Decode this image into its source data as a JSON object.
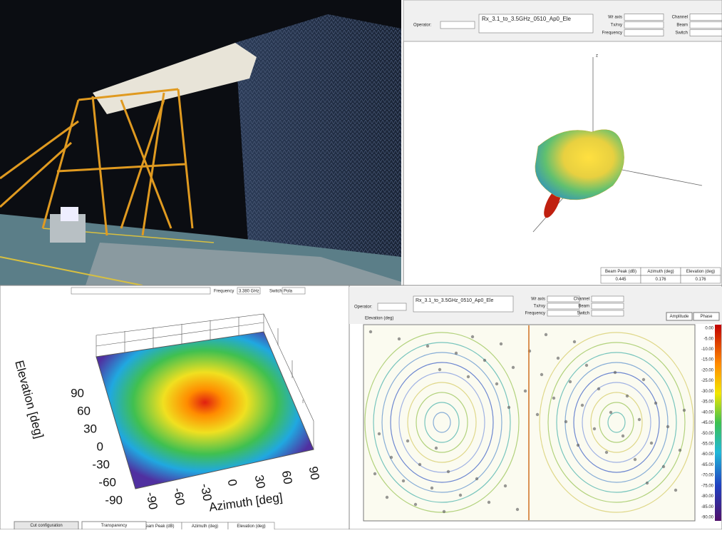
{
  "pattern_window": {
    "operator_label": "Operator:",
    "file": "Rx_3.1_to_3.5GHz_0510_Ap0_Ele",
    "fields": [
      "Wr axis",
      "Tx/rxy",
      "Frequency",
      "Channel",
      "Beam",
      "Switch"
    ],
    "axis_label": "z",
    "result_headers": [
      "Beam Peak (dB)",
      "Azimuth (deg)",
      "Elevation (deg)"
    ],
    "result_values": [
      "0.445",
      "0.176",
      "0.176"
    ]
  },
  "surface_window": {
    "strip": [
      "Frequency",
      "3.380 GHz",
      "Switch",
      "Pola"
    ],
    "y_label": "Elevation [deg]",
    "y_ticks": [
      "90",
      "60",
      "30",
      "0",
      "-30",
      "-60",
      "-90"
    ],
    "x_label": "Azimuth [deg]",
    "x_ticks": [
      "-90",
      "-60",
      "-30",
      "0",
      "30",
      "60",
      "90"
    ],
    "tabs": [
      "Cut configuration",
      "Transparency"
    ],
    "result_headers": [
      "Beam Peak (dB)",
      "Azimuth (deg)",
      "Elevation (deg)"
    ]
  },
  "field_window": {
    "operator_label": "Operator:",
    "file": "Rx_3.1_to_3.5GHz_0510_Ap0_Ele",
    "fields": [
      "Wr axis",
      "Tx/rxy",
      "Frequency",
      "Channel",
      "Beam",
      "Switch"
    ],
    "plot_label": "Elevation (deg)",
    "modes": [
      "Amplitude",
      "Phase"
    ],
    "colorbar_ticks": [
      "0.00",
      "-5.00",
      "-10.00",
      "-15.00",
      "-20.00",
      "-25.00",
      "-30.00",
      "-35.00",
      "-40.00",
      "-45.00",
      "-50.00",
      "-55.00",
      "-60.00",
      "-65.00",
      "-70.00",
      "-75.00",
      "-80.00",
      "-85.00",
      "-90.00"
    ]
  }
}
